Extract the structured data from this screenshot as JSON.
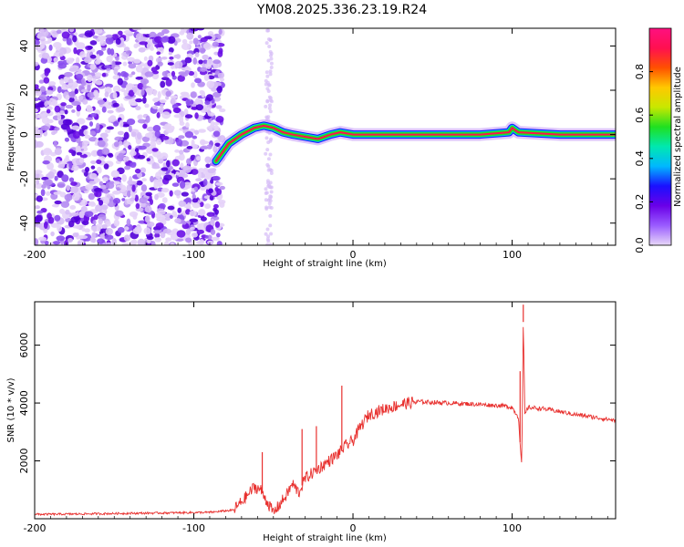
{
  "title": "YM08.2025.336.23.19.R24",
  "chart_data": [
    {
      "type": "heatmap",
      "title": "YM08.2025.336.23.19.R24",
      "xlabel": "Height of straight line (km)",
      "ylabel": "Frequency (Hz)",
      "xlim": [
        -200,
        165
      ],
      "ylim": [
        -50,
        48
      ],
      "xticks": [
        -200,
        -100,
        0,
        100
      ],
      "xtick_labels": [
        "-200",
        "-100",
        "0",
        "100"
      ],
      "yticks": [
        -40,
        -20,
        0,
        20,
        40
      ],
      "ytick_labels": [
        "-40",
        "-20",
        "0",
        "20",
        "40"
      ],
      "colorbar": {
        "label": "Normalized spectral amplitude",
        "range": [
          0,
          1
        ],
        "ticks": [
          0.0,
          0.2,
          0.4,
          0.6,
          0.8
        ],
        "tick_labels": [
          "0.0",
          "0.2",
          "0.4",
          "0.6",
          "0.8"
        ],
        "colors": [
          "#e8d8f8",
          "#9a5cff",
          "#6a00e8",
          "#1a10ff",
          "#00b8ff",
          "#00e8b0",
          "#20e020",
          "#c8e800",
          "#ffc800",
          "#ff5000",
          "#ff1050",
          "#ff1080"
        ]
      },
      "line": {
        "x": [
          -86,
          -78,
          -70,
          -62,
          -56,
          -50,
          -44,
          -38,
          -30,
          -22,
          -14,
          -8,
          0,
          10,
          40,
          80,
          98,
          100,
          104,
          130,
          165
        ],
        "freq": [
          -12,
          -4,
          0,
          3,
          4,
          3,
          1,
          0,
          -1,
          -2,
          0,
          1,
          0,
          0,
          0,
          0,
          1,
          3,
          1,
          0,
          0
        ]
      }
    },
    {
      "type": "line",
      "xlabel": "Height of straight line (km)",
      "ylabel": "SNR (10 * v/v)",
      "xlim": [
        -200,
        165
      ],
      "ylim": [
        0,
        7500
      ],
      "xticks": [
        -200,
        -100,
        0,
        100
      ],
      "xtick_labels": [
        "-200",
        "-100",
        "0",
        "100"
      ],
      "yticks": [
        2000,
        4000,
        6000
      ],
      "ytick_labels": [
        "2000",
        "4000",
        "6000"
      ],
      "series": [
        {
          "name": "SNR",
          "color": "#e8302e",
          "x": [
            -200,
            -180,
            -150,
            -120,
            -90,
            -75,
            -68,
            -62,
            -58,
            -54,
            -50,
            -46,
            -42,
            -38,
            -34,
            -30,
            -25,
            -20,
            -15,
            -10,
            -5,
            0,
            5,
            10,
            20,
            30,
            40,
            60,
            80,
            95,
            100,
            104,
            106,
            107,
            108,
            110,
            120,
            140,
            165
          ],
          "y": [
            150,
            160,
            180,
            200,
            220,
            300,
            700,
            1100,
            1000,
            600,
            200,
            500,
            800,
            1200,
            900,
            1400,
            1600,
            1800,
            2000,
            2200,
            2500,
            2700,
            3200,
            3600,
            3800,
            3950,
            4050,
            4000,
            3950,
            3900,
            3850,
            3500,
            1800,
            6800,
            3600,
            3850,
            3800,
            3600,
            3400
          ],
          "spikes": [
            {
              "x": -57,
              "y": 2300
            },
            {
              "x": -32,
              "y": 3100
            },
            {
              "x": -23,
              "y": 3200
            },
            {
              "x": -7,
              "y": 4600
            },
            {
              "x": 105,
              "y": 5100
            },
            {
              "x": 107,
              "y": 7400
            }
          ]
        }
      ]
    }
  ]
}
